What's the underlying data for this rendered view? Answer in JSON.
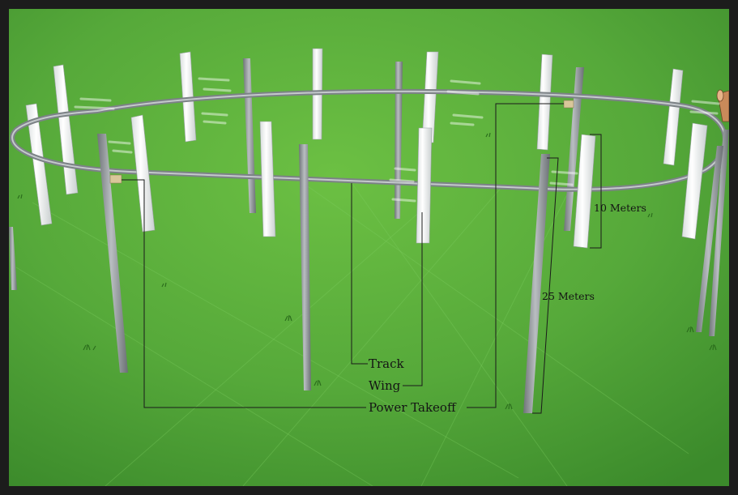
{
  "labels": {
    "track": "Track",
    "wing": "Wing",
    "power_takeoff": "Power Takeoff",
    "wing_height": "10 Meters",
    "post_height": "25 Meters"
  },
  "colors": {
    "grass_light": "#5fb43a",
    "grass_dark": "#3e8f2a",
    "frame": "#1c1c1c",
    "post": "#8a8f93",
    "wing": "#f4f6f6",
    "leader": "#1a1a1a"
  },
  "icons": [
    "grass-tuft-icon",
    "wind-streak-icon",
    "cone-icon"
  ]
}
